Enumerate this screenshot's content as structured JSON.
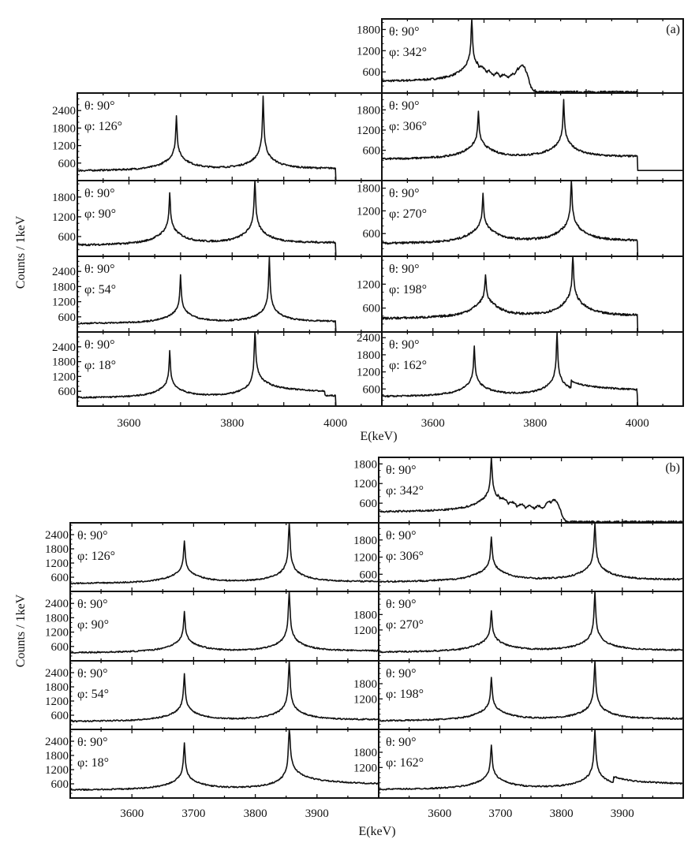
{
  "chart_data": [
    {
      "type": "line",
      "figure_label": "(a)",
      "xlabel": "E(keV)",
      "ylabel": "Counts / 1keV",
      "xlim": [
        3500,
        4090
      ],
      "xticks": [
        3600,
        3800,
        4000
      ],
      "cutoff_keV": 4000,
      "panels": [
        {
          "id": "top",
          "theta": "θ:  90°",
          "phi": "φ:  342°",
          "yticks": [
            600,
            1200,
            1800
          ],
          "ylim": [
            0,
            2100
          ],
          "peaks": [
            {
              "E": 3676,
              "h": 2150
            }
          ],
          "bump": {
            "E": 3775,
            "h": 820
          },
          "end": 3800
        },
        {
          "id": "L1",
          "theta": "θ:  90°",
          "phi": "φ:  126°",
          "yticks": [
            600,
            1200,
            1800,
            2400
          ],
          "ylim": [
            0,
            3000
          ],
          "peaks": [
            {
              "E": 3692,
              "h": 2200
            },
            {
              "E": 3860,
              "h": 2850
            }
          ]
        },
        {
          "id": "R1",
          "theta": "θ:  90°",
          "phi": "φ:  306°",
          "yticks": [
            600,
            1200,
            1800
          ],
          "ylim": [
            -300,
            2300
          ],
          "peaks": [
            {
              "E": 3689,
              "h": 1700
            },
            {
              "E": 3856,
              "h": 2050
            }
          ]
        },
        {
          "id": "L2",
          "theta": "θ:  90°",
          "phi": "φ:  90°",
          "yticks": [
            600,
            1200,
            1800
          ],
          "ylim": [
            0,
            2300
          ],
          "peaks": [
            {
              "E": 3679,
              "h": 1900
            },
            {
              "E": 3844,
              "h": 2350
            }
          ]
        },
        {
          "id": "R2",
          "theta": "θ:  90°",
          "phi": "φ:  270°",
          "yticks": [
            600,
            1200,
            1800
          ],
          "ylim": [
            0,
            2000
          ],
          "peaks": [
            {
              "E": 3698,
              "h": 1600
            },
            {
              "E": 3871,
              "h": 2050
            }
          ]
        },
        {
          "id": "L3",
          "theta": "θ:  90°",
          "phi": "φ:  54°",
          "yticks": [
            600,
            1200,
            1800,
            2400
          ],
          "ylim": [
            0,
            3000
          ],
          "peaks": [
            {
              "E": 3700,
              "h": 2200
            },
            {
              "E": 3872,
              "h": 2950
            }
          ]
        },
        {
          "id": "R3",
          "theta": "θ:  90°",
          "phi": "φ:  198°",
          "yticks": [
            600,
            1200
          ],
          "ylim": [
            0,
            1900
          ],
          "peaks": [
            {
              "E": 3703,
              "h": 1400
            },
            {
              "E": 3874,
              "h": 1950
            }
          ]
        },
        {
          "id": "L4",
          "theta": "θ:  90°",
          "phi": "φ:  18°",
          "yticks": [
            600,
            1200,
            1800,
            2400
          ],
          "ylim": [
            0,
            3000
          ],
          "peaks": [
            {
              "E": 3679,
              "h": 2200
            },
            {
              "E": 3844,
              "h": 3000
            }
          ],
          "tail": {
            "from": 3844,
            "to": 3980,
            "h": 300
          }
        },
        {
          "id": "R4",
          "theta": "θ:  90°",
          "phi": "φ:  162°",
          "yticks": [
            600,
            1200,
            1800,
            2400
          ],
          "ylim": [
            0,
            2600
          ],
          "peaks": [
            {
              "E": 3681,
              "h": 2050
            },
            {
              "E": 3843,
              "h": 2600
            }
          ],
          "tail": {
            "from": 3870,
            "to": 4000,
            "h": 260
          }
        }
      ]
    },
    {
      "type": "line",
      "figure_label": "(b)",
      "xlabel": "E(keV)",
      "ylabel": "Counts / 1keV",
      "xlim": [
        3500,
        4000
      ],
      "xticks": [
        3600,
        3700,
        3800,
        3900
      ],
      "panels": [
        {
          "id": "top",
          "theta": "θ:  90°",
          "phi": "φ:  342°",
          "yticks": [
            600,
            1200,
            1800
          ],
          "ylim": [
            0,
            2000
          ],
          "peaks": [
            {
              "E": 3685,
              "h": 1950
            }
          ],
          "bump": {
            "E": 3790,
            "h": 760
          },
          "end": 3810
        },
        {
          "id": "L1",
          "theta": "θ:  90°",
          "phi": "φ:  126°",
          "yticks": [
            600,
            1200,
            1800,
            2400
          ],
          "ylim": [
            0,
            2900
          ],
          "peaks": [
            {
              "E": 3685,
              "h": 2100
            },
            {
              "E": 3855,
              "h": 2900
            }
          ]
        },
        {
          "id": "R1",
          "theta": "θ:  90°",
          "phi": "φ:  306°",
          "yticks": [
            600,
            1200,
            1800
          ],
          "ylim": [
            0,
            2400
          ],
          "peaks": [
            {
              "E": 3685,
              "h": 1850
            },
            {
              "E": 3855,
              "h": 2400
            }
          ]
        },
        {
          "id": "L2",
          "theta": "θ:  90°",
          "phi": "φ:  90°",
          "yticks": [
            600,
            1200,
            1800,
            2400
          ],
          "ylim": [
            0,
            2900
          ],
          "peaks": [
            {
              "E": 3685,
              "h": 2000
            },
            {
              "E": 3855,
              "h": 2900
            }
          ]
        },
        {
          "id": "R2",
          "theta": "θ:  90°",
          "phi": "φ:  270°",
          "yticks": [
            1200,
            1800
          ],
          "ylim": [
            0,
            2700
          ],
          "peaks": [
            {
              "E": 3685,
              "h": 1900
            },
            {
              "E": 3855,
              "h": 2650
            }
          ]
        },
        {
          "id": "L3",
          "theta": "θ:  90°",
          "phi": "φ:  54°",
          "yticks": [
            600,
            1200,
            1800,
            2400
          ],
          "ylim": [
            0,
            2900
          ],
          "peaks": [
            {
              "E": 3685,
              "h": 2300
            },
            {
              "E": 3855,
              "h": 2900
            }
          ]
        },
        {
          "id": "R3",
          "theta": "θ:  90°",
          "phi": "φ:  198°",
          "yticks": [
            1200,
            1800
          ],
          "ylim": [
            0,
            2700
          ],
          "peaks": [
            {
              "E": 3685,
              "h": 2000
            },
            {
              "E": 3855,
              "h": 2700
            }
          ]
        },
        {
          "id": "L4",
          "theta": "θ:  90°",
          "phi": "φ:  18°",
          "yticks": [
            600,
            1200,
            1800,
            2400
          ],
          "ylim": [
            0,
            2900
          ],
          "peaks": [
            {
              "E": 3685,
              "h": 2300
            },
            {
              "E": 3855,
              "h": 2900
            }
          ],
          "tail": {
            "from": 3855,
            "to": 4000,
            "h": 300
          }
        },
        {
          "id": "R4",
          "theta": "θ:  90°",
          "phi": "φ:  162°",
          "yticks": [
            1200,
            1800
          ],
          "ylim": [
            0,
            2700
          ],
          "peaks": [
            {
              "E": 3685,
              "h": 2050
            },
            {
              "E": 3855,
              "h": 2700
            }
          ],
          "tail": {
            "from": 3885,
            "to": 4000,
            "h": 230
          }
        }
      ]
    }
  ]
}
